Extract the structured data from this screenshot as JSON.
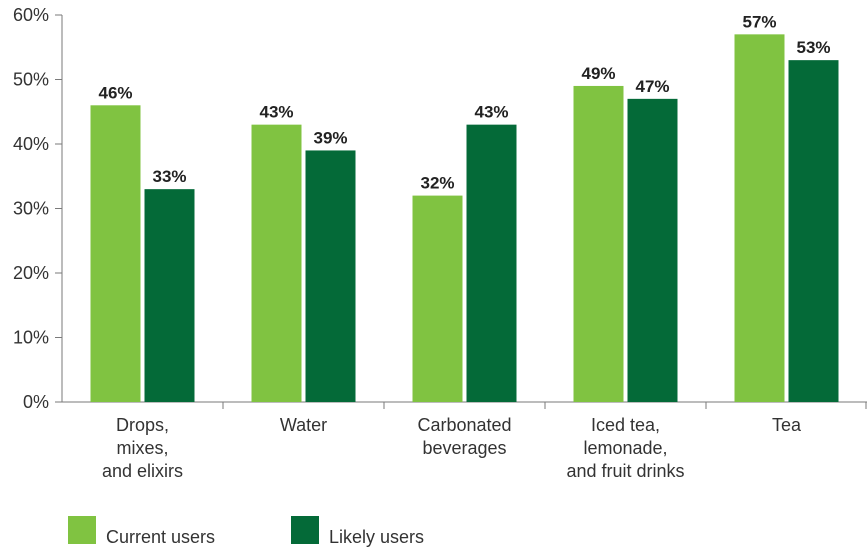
{
  "chart_data": {
    "type": "bar",
    "categories": [
      [
        "Drops,",
        "mixes,",
        "and elixirs"
      ],
      [
        "Water"
      ],
      [
        "Carbonated",
        "beverages"
      ],
      [
        "Iced tea,",
        "lemonade,",
        "and fruit drinks"
      ],
      [
        "Tea"
      ]
    ],
    "series": [
      {
        "name": "Current users",
        "color": "#80c341",
        "values": [
          46,
          43,
          32,
          49,
          57
        ]
      },
      {
        "name": "Likely users",
        "color": "#046a38",
        "values": [
          33,
          39,
          43,
          47,
          53
        ]
      }
    ],
    "value_suffix": "%",
    "yticks": [
      "0%",
      "10%",
      "20%",
      "30%",
      "40%",
      "50%",
      "60%"
    ],
    "ylim": [
      0,
      60
    ],
    "grid": false,
    "legend_position": "bottom-left",
    "title": "",
    "xlabel": "",
    "ylabel": ""
  }
}
